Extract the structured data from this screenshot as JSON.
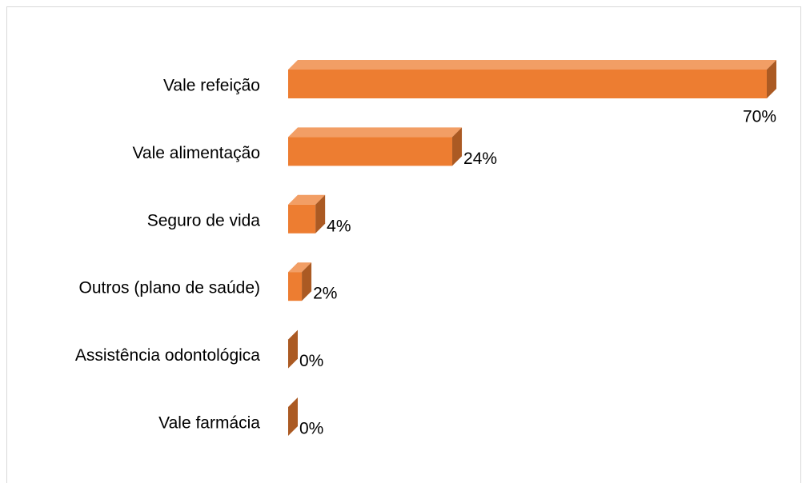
{
  "chart_data": {
    "type": "bar3d",
    "categories": [
      "Vale refeição",
      "Vale alimentação",
      "Seguro de vida",
      "Outros (plano de saúde)",
      "Assistência odontológica",
      "Vale farmácia"
    ],
    "values": [
      70,
      24,
      4,
      2,
      0,
      0
    ],
    "value_labels": [
      "70%",
      "24%",
      "4%",
      "2%",
      "0%",
      "0%"
    ],
    "color": "#ED7D31"
  }
}
